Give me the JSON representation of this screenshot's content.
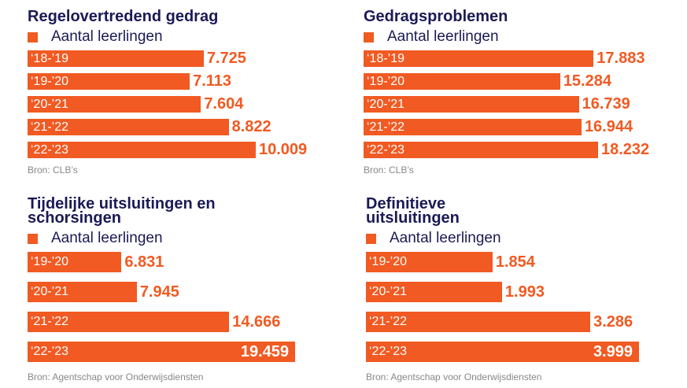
{
  "chart_data": [
    {
      "type": "bar",
      "title": "Regelovertredend gedrag",
      "source": "Bron: CLB’s",
      "categories": [
        "‘18-’19",
        "‘19-’20",
        "‘20-’21",
        "‘21-’22",
        "‘22-’23"
      ],
      "series": [
        {
          "name": "Aantal leerlingen",
          "color": "#f15a22",
          "values": [
            7725,
            7113,
            7604,
            8822,
            10009
          ],
          "value_labels": [
            "7.725",
            "7.113",
            "7.604",
            "8.822",
            "10.009"
          ]
        }
      ]
    },
    {
      "type": "bar",
      "title": "Gedragsproblemen",
      "source": "Bron: CLB’s",
      "categories": [
        "‘18-’19",
        "‘19-’20",
        "‘20-’21",
        "‘21-’22",
        "‘22-’23"
      ],
      "series": [
        {
          "name": "Aantal leerlingen",
          "color": "#f15a22",
          "values": [
            17883,
            15284,
            16739,
            16944,
            18232
          ],
          "value_labels": [
            "17.883",
            "15.284",
            "16.739",
            "16.944",
            "18.232"
          ]
        }
      ]
    },
    {
      "type": "bar",
      "title": "Tijdelijke uitsluitingen en schorsingen",
      "source": "Bron: Agentschap voor Onderwijsdiensten",
      "categories": [
        "‘19-’20",
        "‘20-’21",
        "‘21-’22",
        "‘22-’23"
      ],
      "series": [
        {
          "name": "Aantal leerlingen",
          "color": "#f15a22",
          "values": [
            6831,
            7945,
            14666,
            19459
          ],
          "value_labels": [
            "6.831",
            "7.945",
            "14.666",
            "19.459"
          ]
        }
      ]
    },
    {
      "type": "bar",
      "title": "Definitieve uitsluitingen",
      "source": "Bron: Agentschap voor Onderwijsdiensten",
      "categories": [
        "‘19-’20",
        "‘20-’21",
        "‘21-’22",
        "‘22-’23"
      ],
      "series": [
        {
          "name": "Aantal leerlingen",
          "color": "#f15a22",
          "values": [
            1854,
            1993,
            3286,
            3999
          ],
          "value_labels": [
            "1.854",
            "1.993",
            "3.286",
            "3.999"
          ]
        }
      ]
    }
  ]
}
